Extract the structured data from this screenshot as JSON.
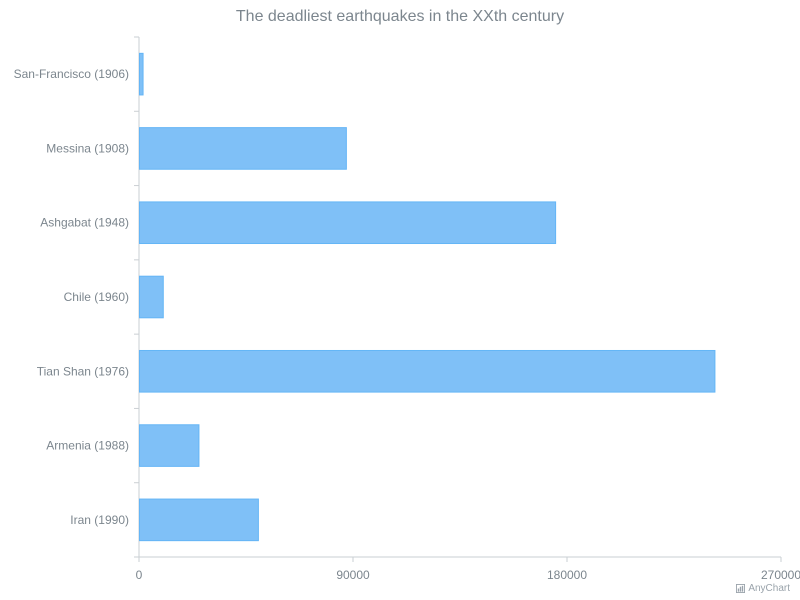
{
  "chart_data": {
    "type": "bar",
    "orientation": "horizontal",
    "title": "The deadliest earthquakes in the XXth century",
    "categories": [
      "San-Francisco (1906)",
      "Messina (1908)",
      "Ashgabat (1948)",
      "Chile (1960)",
      "Tian Shan (1976)",
      "Armenia (1988)",
      "Iran (1990)"
    ],
    "values": [
      1500,
      87000,
      175000,
      10000,
      242000,
      25000,
      50000
    ],
    "xlim": [
      0,
      270000
    ],
    "xticks": [
      "0",
      "90000",
      "180000",
      "270000"
    ],
    "bar_color": "#7fc0f7",
    "bar_border_color": "#64b5f6",
    "axis_color": "#cacfd3",
    "grid": false
  },
  "credits": {
    "label": "AnyChart",
    "icon": "bar-chart-icon"
  }
}
